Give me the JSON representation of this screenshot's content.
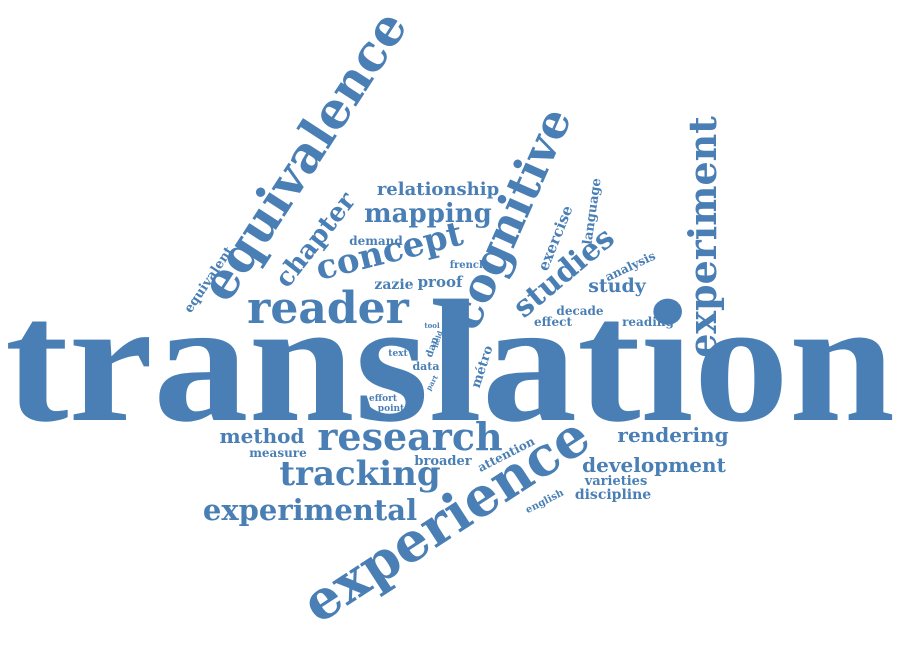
{
  "word_color": "#4a7fb5",
  "background_color": "#ffffff",
  "words": {
    "translation": "translation",
    "experience": "experience",
    "equivalence": "equivalence",
    "cognitive": "cognitive",
    "experiment": "experiment",
    "reader": "reader",
    "research": "research",
    "concept": "concept",
    "studies": "studies",
    "chapter": "chapter",
    "mapping": "mapping",
    "tracking": "tracking",
    "experimental": "experimental",
    "relationship": "relationship",
    "development": "development",
    "rendering": "rendering",
    "method": "method",
    "study": "study",
    "exercise": "exercise",
    "language": "language",
    "proof": "proof",
    "zazie": "zazie",
    "demand": "demand",
    "french": "french",
    "equivalent": "equivalent",
    "analysis": "analysis",
    "decade": "decade",
    "effect": "effect",
    "reading": "reading",
    "metro": "métro",
    "data": "data",
    "dan": "dan",
    "text": "text",
    "tool": "tool",
    "field": "field",
    "part": "part",
    "effort": "effort",
    "point": "point",
    "measure": "measure",
    "broader": "broader",
    "attention": "attention",
    "varieties": "varieties",
    "english": "english",
    "discipline": "discipline"
  }
}
